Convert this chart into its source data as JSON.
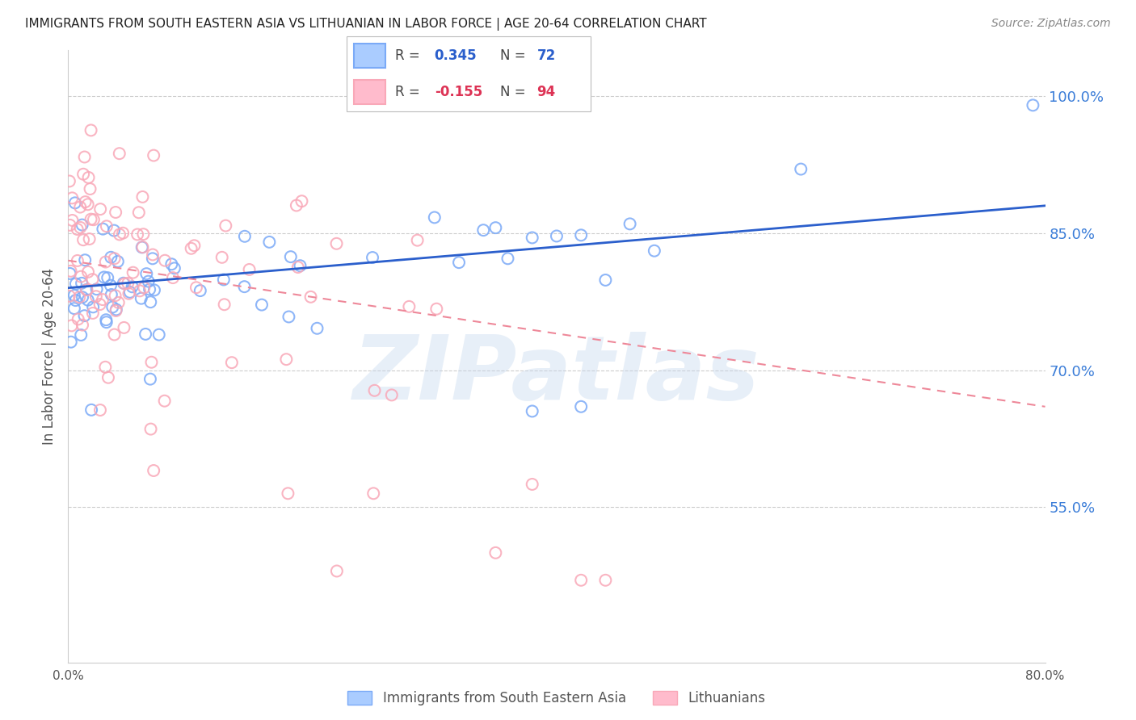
{
  "title": "IMMIGRANTS FROM SOUTH EASTERN ASIA VS LITHUANIAN IN LABOR FORCE | AGE 20-64 CORRELATION CHART",
  "source": "Source: ZipAtlas.com",
  "ylabel": "In Labor Force | Age 20-64",
  "yticks": [
    0.55,
    0.7,
    0.85,
    1.0
  ],
  "ytick_labels": [
    "55.0%",
    "70.0%",
    "85.0%",
    "100.0%"
  ],
  "xmin": 0.0,
  "xmax": 0.8,
  "ymin": 0.38,
  "ymax": 1.05,
  "series1_color": "#7BAAF7",
  "series2_color": "#F9A8B8",
  "trendline1_color": "#2B5FCC",
  "trendline2_color": "#EE8899",
  "watermark": "ZIPatlas",
  "watermark_color": "#C5D8EE",
  "blue_line_x0": 0.0,
  "blue_line_y0": 0.79,
  "blue_line_x1": 0.8,
  "blue_line_y1": 0.88,
  "pink_line_x0": 0.0,
  "pink_line_y0": 0.82,
  "pink_line_x1": 0.8,
  "pink_line_y1": 0.66
}
